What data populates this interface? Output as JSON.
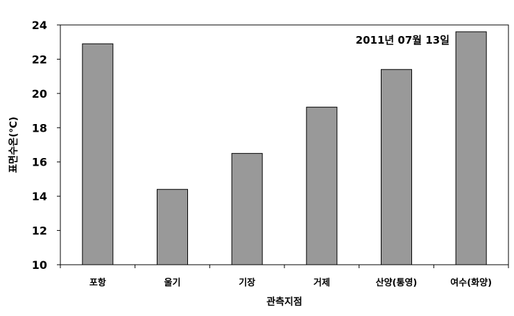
{
  "chart_data": {
    "type": "bar",
    "annotation": "2011년 07월 13일",
    "xlabel": "관측지점",
    "ylabel": "표면수온(℃)",
    "categories": [
      "포항",
      "울기",
      "기장",
      "거제",
      "산양(통영)",
      "여수(화양)"
    ],
    "values": [
      22.9,
      14.4,
      16.5,
      19.2,
      21.4,
      23.6
    ],
    "ylim": [
      10,
      24
    ],
    "yticks": [
      10,
      12,
      14,
      16,
      18,
      20,
      22,
      24
    ],
    "grid": false,
    "colors": {
      "bar": "#999999",
      "bar_stroke": "#000000",
      "frame": "#000000"
    }
  }
}
